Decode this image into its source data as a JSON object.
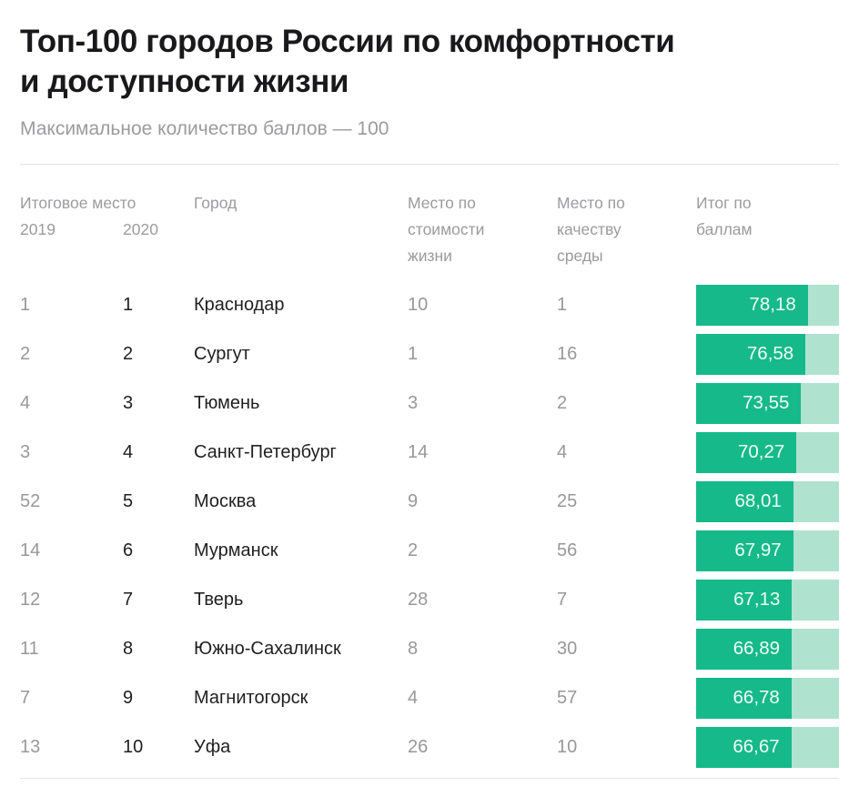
{
  "header": {
    "title_line1": "Топ-100 городов России по комфортности",
    "title_line2": "и доступности жизни",
    "subtitle": "Максимальное количество баллов — 100"
  },
  "table": {
    "headers": {
      "final_place": "Итоговое место",
      "year_2019": "2019",
      "year_2020": "2020",
      "city": "Город",
      "cost": "Место по стоимости жизни",
      "env": "Место по качеству среды",
      "total": "Итог по баллам"
    },
    "rows": [
      {
        "place_2019": "1",
        "place_2020": "1",
        "city": "Краснодар",
        "cost_rank": "10",
        "env_rank": "1",
        "score": 78.18,
        "score_label": "78,18"
      },
      {
        "place_2019": "2",
        "place_2020": "2",
        "city": "Сургут",
        "cost_rank": "1",
        "env_rank": "16",
        "score": 76.58,
        "score_label": "76,58"
      },
      {
        "place_2019": "4",
        "place_2020": "3",
        "city": "Тюмень",
        "cost_rank": "3",
        "env_rank": "2",
        "score": 73.55,
        "score_label": "73,55"
      },
      {
        "place_2019": "3",
        "place_2020": "4",
        "city": "Санкт-Петербург",
        "cost_rank": "14",
        "env_rank": "4",
        "score": 70.27,
        "score_label": "70,27"
      },
      {
        "place_2019": "52",
        "place_2020": "5",
        "city": "Москва",
        "cost_rank": "9",
        "env_rank": "25",
        "score": 68.01,
        "score_label": "68,01"
      },
      {
        "place_2019": "14",
        "place_2020": "6",
        "city": "Мурманск",
        "cost_rank": "2",
        "env_rank": "56",
        "score": 67.97,
        "score_label": "67,97"
      },
      {
        "place_2019": "12",
        "place_2020": "7",
        "city": "Тверь",
        "cost_rank": "28",
        "env_rank": "7",
        "score": 67.13,
        "score_label": "67,13"
      },
      {
        "place_2019": "11",
        "place_2020": "8",
        "city": "Южно-Сахалинск",
        "cost_rank": "8",
        "env_rank": "30",
        "score": 66.89,
        "score_label": "66,89"
      },
      {
        "place_2019": "7",
        "place_2020": "9",
        "city": "Магнитогорск",
        "cost_rank": "4",
        "env_rank": "57",
        "score": 66.78,
        "score_label": "66,78"
      },
      {
        "place_2019": "13",
        "place_2020": "10",
        "city": "Уфа",
        "cost_rank": "26",
        "env_rank": "10",
        "score": 66.67,
        "score_label": "66,67"
      }
    ]
  },
  "colors": {
    "bar_fill": "#16b98a",
    "bar_track": "#b0e2d0",
    "text_dark": "#1f1f21",
    "text_gray": "#98989b",
    "divider": "#e4e4e6"
  },
  "chart_data": {
    "type": "bar",
    "orientation": "horizontal",
    "title": "Топ-100 городов России по комфортности и доступности жизни",
    "subtitle": "Максимальное количество баллов — 100",
    "xlim": [
      0,
      100
    ],
    "max_score": 100,
    "categories": [
      "Краснодар",
      "Сургут",
      "Тюмень",
      "Санкт-Петербург",
      "Москва",
      "Мурманск",
      "Тверь",
      "Южно-Сахалинск",
      "Магнитогорск",
      "Уфа"
    ],
    "values": [
      78.18,
      76.58,
      73.55,
      70.27,
      68.01,
      67.97,
      67.13,
      66.89,
      66.78,
      66.67
    ],
    "value_labels": [
      "78,18",
      "76,58",
      "73,55",
      "70,27",
      "68,01",
      "67,97",
      "67,13",
      "66,89",
      "66,78",
      "66,67"
    ],
    "series_2019_place": [
      1,
      2,
      4,
      3,
      52,
      14,
      12,
      11,
      7,
      13
    ],
    "series_2020_place": [
      1,
      2,
      3,
      4,
      5,
      6,
      7,
      8,
      9,
      10
    ],
    "series_cost_of_living_rank": [
      10,
      1,
      3,
      14,
      9,
      2,
      28,
      8,
      4,
      26
    ],
    "series_environment_quality_rank": [
      1,
      16,
      2,
      4,
      25,
      56,
      7,
      30,
      57,
      10
    ],
    "legend_position": "none",
    "grid": false
  }
}
